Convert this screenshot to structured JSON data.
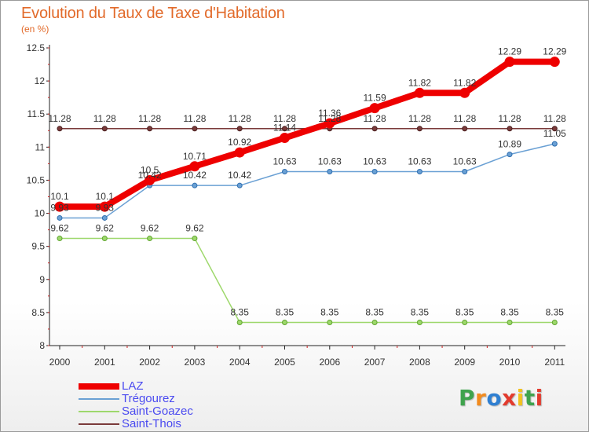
{
  "header": {
    "title": "Evolution du Taux de Taxe d'Habitation",
    "unit": "(en %)"
  },
  "logo": {
    "letters": [
      "P",
      "r",
      "o",
      "x",
      "i",
      "t",
      "i"
    ],
    "colors": [
      "#3fa34d",
      "#f28b1e",
      "#2f7fd1",
      "#e23b2e",
      "#f2c21e",
      "#3fa34d",
      "#e23b2e"
    ]
  },
  "chart_data": {
    "type": "line",
    "title": "Evolution du Taux de Taxe d'Habitation",
    "xlabel": "",
    "ylabel": "(en %)",
    "ylim": [
      8,
      12.5
    ],
    "yticks": [
      8,
      8.5,
      9,
      9.5,
      10,
      10.5,
      11,
      11.5,
      12,
      12.5
    ],
    "x": [
      "2000",
      "2001",
      "2002",
      "2003",
      "2004",
      "2005",
      "2006",
      "2007",
      "2008",
      "2009",
      "2010",
      "2011"
    ],
    "grid": false,
    "legend_position": "bottom-left",
    "series": [
      {
        "name": "LAZ",
        "color": "#ee0000",
        "values": [
          10.1,
          10.1,
          10.5,
          10.71,
          10.92,
          11.14,
          11.36,
          11.59,
          11.82,
          11.82,
          12.29,
          12.29
        ],
        "labels": [
          "10.1",
          "10.1",
          "10.5",
          "10.71",
          "10.92",
          "11.14",
          "11.36",
          "11.59",
          "11.82",
          "11.82",
          "12.29",
          "12.29"
        ]
      },
      {
        "name": "Trégourez",
        "color": "#6aa0d4",
        "values": [
          9.93,
          9.93,
          10.42,
          10.42,
          10.42,
          10.63,
          10.63,
          10.63,
          10.63,
          10.63,
          10.89,
          11.05
        ],
        "labels": [
          "9.93",
          "9.93",
          "10.42",
          "10.42",
          "10.42",
          "10.63",
          "10.63",
          "10.63",
          "10.63",
          "10.63",
          "10.89",
          "11.05"
        ]
      },
      {
        "name": "Saint-Goazec",
        "color": "#9ed86c",
        "values": [
          9.62,
          9.62,
          9.62,
          9.62,
          8.35,
          8.35,
          8.35,
          8.35,
          8.35,
          8.35,
          8.35,
          8.35
        ],
        "labels": [
          "9.62",
          "9.62",
          "9.62",
          "9.62",
          "8.35",
          "8.35",
          "8.35",
          "8.35",
          "8.35",
          "8.35",
          "8.35",
          "8.35"
        ]
      },
      {
        "name": "Saint-Thois",
        "color": "#7a3a3a",
        "values": [
          11.28,
          11.28,
          11.28,
          11.28,
          11.28,
          11.28,
          11.28,
          11.28,
          11.28,
          11.28,
          11.28,
          11.28
        ],
        "labels": [
          "11.28",
          "11.28",
          "11.28",
          "11.28",
          "11.28",
          "11.28",
          "11.28",
          "11.28",
          "11.28",
          "11.28",
          "11.28",
          "11.28"
        ]
      }
    ]
  }
}
